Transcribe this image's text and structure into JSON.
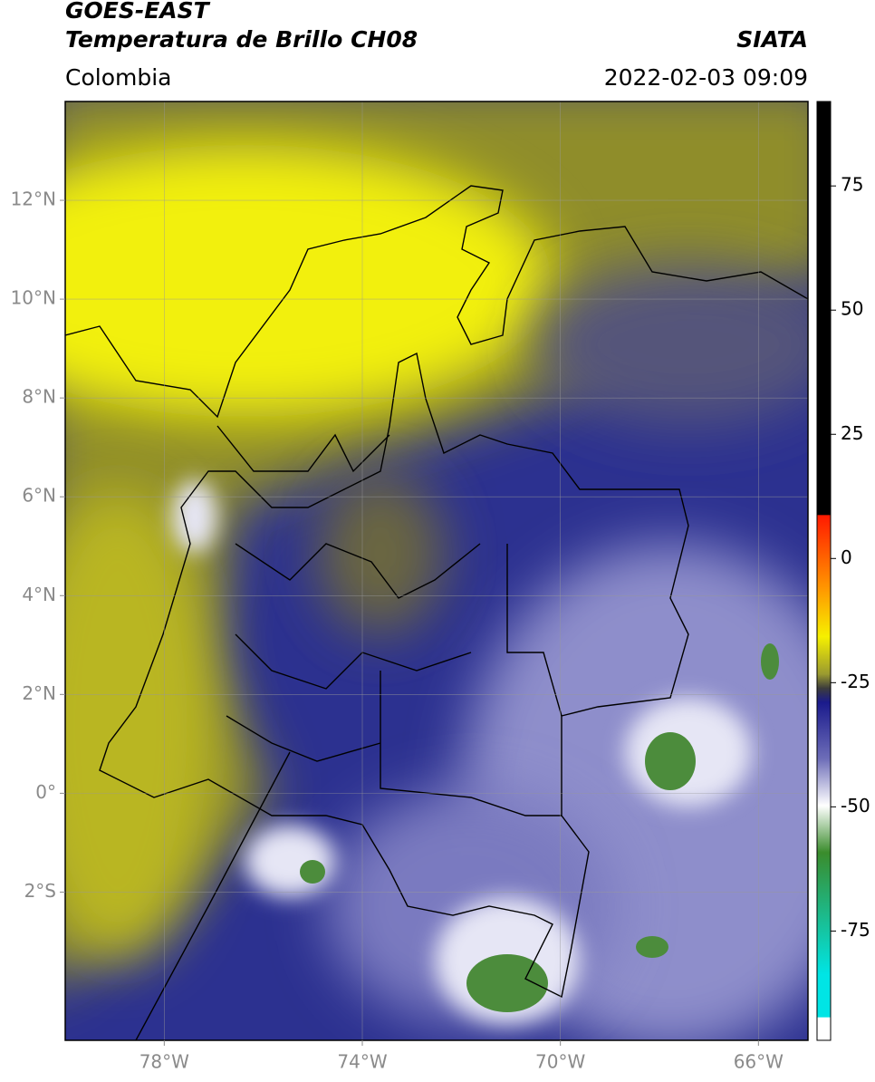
{
  "header": {
    "title_line1": "GOES-EAST",
    "title_line2": "Temperatura de Brillo CH08",
    "source": "SIATA",
    "region": "Colombia",
    "datetime": "2022-02-03 09:09"
  },
  "map": {
    "xlim": [
      -80,
      -65
    ],
    "ylim": [
      -5,
      14
    ],
    "xticks": [
      {
        "value": -78,
        "label": "78°W"
      },
      {
        "value": -74,
        "label": "74°W"
      },
      {
        "value": -70,
        "label": "70°W"
      },
      {
        "value": -66,
        "label": "66°W"
      }
    ],
    "yticks": [
      {
        "value": 12,
        "label": "12°N"
      },
      {
        "value": 10,
        "label": "10°N"
      },
      {
        "value": 8,
        "label": "8°N"
      },
      {
        "value": 6,
        "label": "6°N"
      },
      {
        "value": 4,
        "label": "4°N"
      },
      {
        "value": 2,
        "label": "2°N"
      },
      {
        "value": 0,
        "label": "0°"
      },
      {
        "value": -2,
        "label": "2°S"
      }
    ],
    "grid": true
  },
  "colorbar": {
    "lim": [
      -97,
      92
    ],
    "ticks": [
      75,
      50,
      25,
      0,
      -25,
      -50,
      -75
    ]
  }
}
